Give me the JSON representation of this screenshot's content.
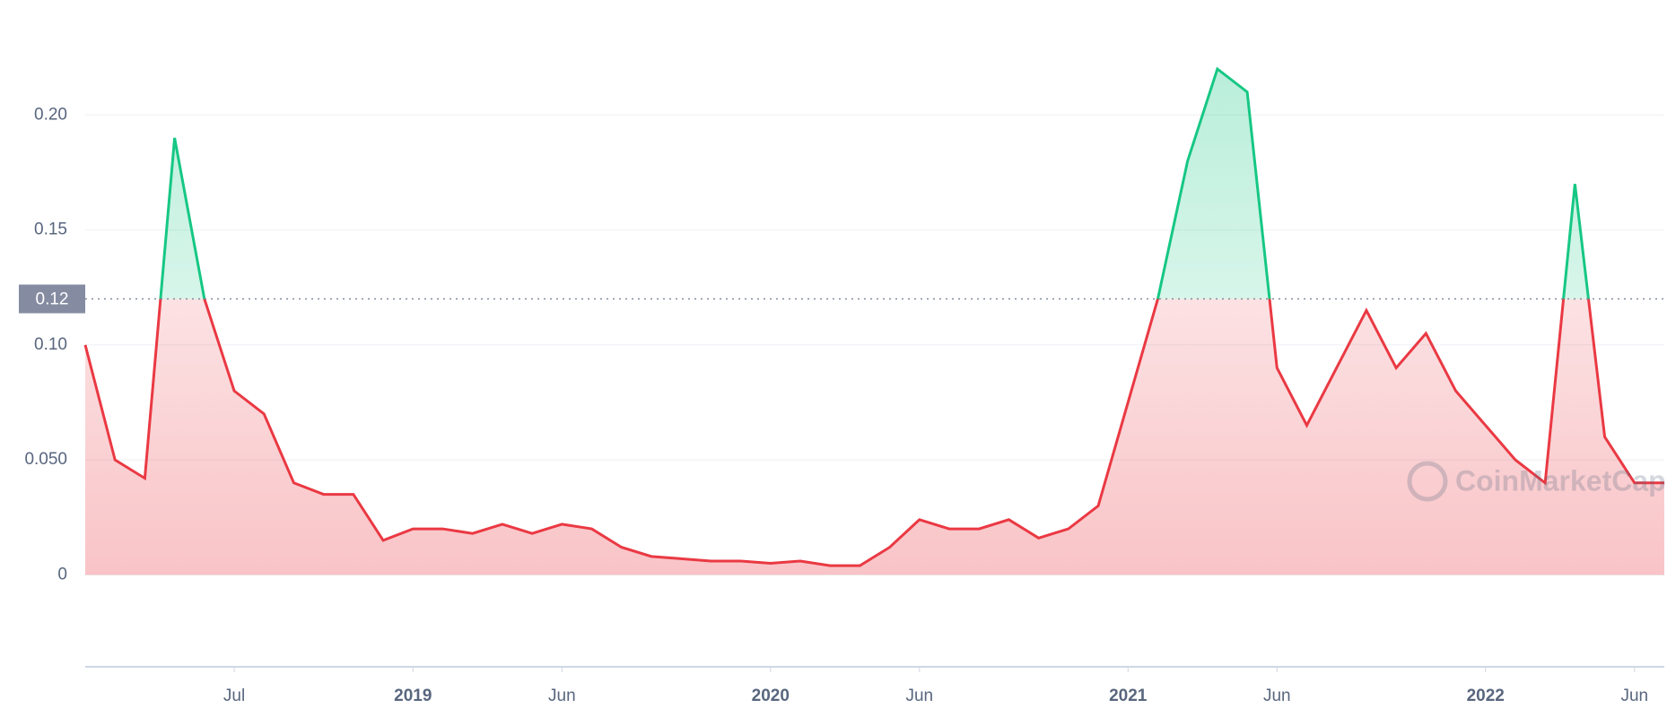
{
  "chart_data": {
    "type": "line",
    "x": [
      "2018-02",
      "2018-03",
      "2018-04",
      "2018-05",
      "2018-06",
      "2018-07",
      "2018-08",
      "2018-09",
      "2018-10",
      "2018-11",
      "2018-12",
      "2019-01",
      "2019-02",
      "2019-03",
      "2019-04",
      "2019-05",
      "2019-06",
      "2019-07",
      "2019-08",
      "2019-09",
      "2019-10",
      "2019-11",
      "2019-12",
      "2020-01",
      "2020-02",
      "2020-03",
      "2020-04",
      "2020-05",
      "2020-06",
      "2020-07",
      "2020-08",
      "2020-09",
      "2020-10",
      "2020-11",
      "2020-12",
      "2021-01",
      "2021-02",
      "2021-03",
      "2021-04",
      "2021-05",
      "2021-06",
      "2021-07",
      "2021-08",
      "2021-09",
      "2021-10",
      "2021-11",
      "2021-12",
      "2022-01",
      "2022-02",
      "2022-03",
      "2022-04",
      "2022-05",
      "2022-06",
      "2022-07"
    ],
    "series": [
      {
        "color": "#ea3943",
        "values": [
          0.1,
          0.05,
          0.042,
          0.19,
          0.12,
          0.08,
          0.07,
          0.04,
          0.035,
          0.035,
          0.015,
          0.02,
          0.02,
          0.018,
          0.022,
          0.018,
          0.022,
          0.02,
          0.012,
          0.008,
          0.007,
          0.006,
          0.006,
          0.005,
          0.006,
          0.004,
          0.004,
          0.012,
          0.024,
          0.02,
          0.02,
          0.024,
          0.016,
          0.02,
          0.03,
          0.075,
          0.12,
          0.18,
          0.22,
          0.21,
          0.09,
          0.065,
          0.09,
          0.115,
          0.09,
          0.105,
          0.08,
          0.065,
          0.05,
          0.04,
          0.17,
          0.06,
          0.04,
          0.04
        ]
      }
    ],
    "reference_line": {
      "value": 0.12,
      "color": "#16c784"
    },
    "xlim": [
      "2018-02",
      "2022-07"
    ],
    "xticks": [
      {
        "value": "2018-07",
        "label": "Jul"
      },
      {
        "value": "2019-01",
        "label": "2019"
      },
      {
        "value": "2019-06",
        "label": "Jun"
      },
      {
        "value": "2020-01",
        "label": "2020"
      },
      {
        "value": "2020-06",
        "label": "Jun"
      },
      {
        "value": "2021-01",
        "label": "2021"
      },
      {
        "value": "2021-06",
        "label": "Jun"
      },
      {
        "value": "2022-01",
        "label": "2022"
      },
      {
        "value": "2022-06",
        "label": "Jun"
      }
    ],
    "ylim": [
      -0.04,
      0.25
    ],
    "yticks": [
      0,
      {
        "value": 0.05,
        "label": "0.050"
      },
      {
        "value": 0.1,
        "label": "0.10"
      },
      0.15,
      {
        "value": 0.2,
        "label": "0.20"
      }
    ],
    "grid": true,
    "watermark": "CoinMarketCap"
  }
}
